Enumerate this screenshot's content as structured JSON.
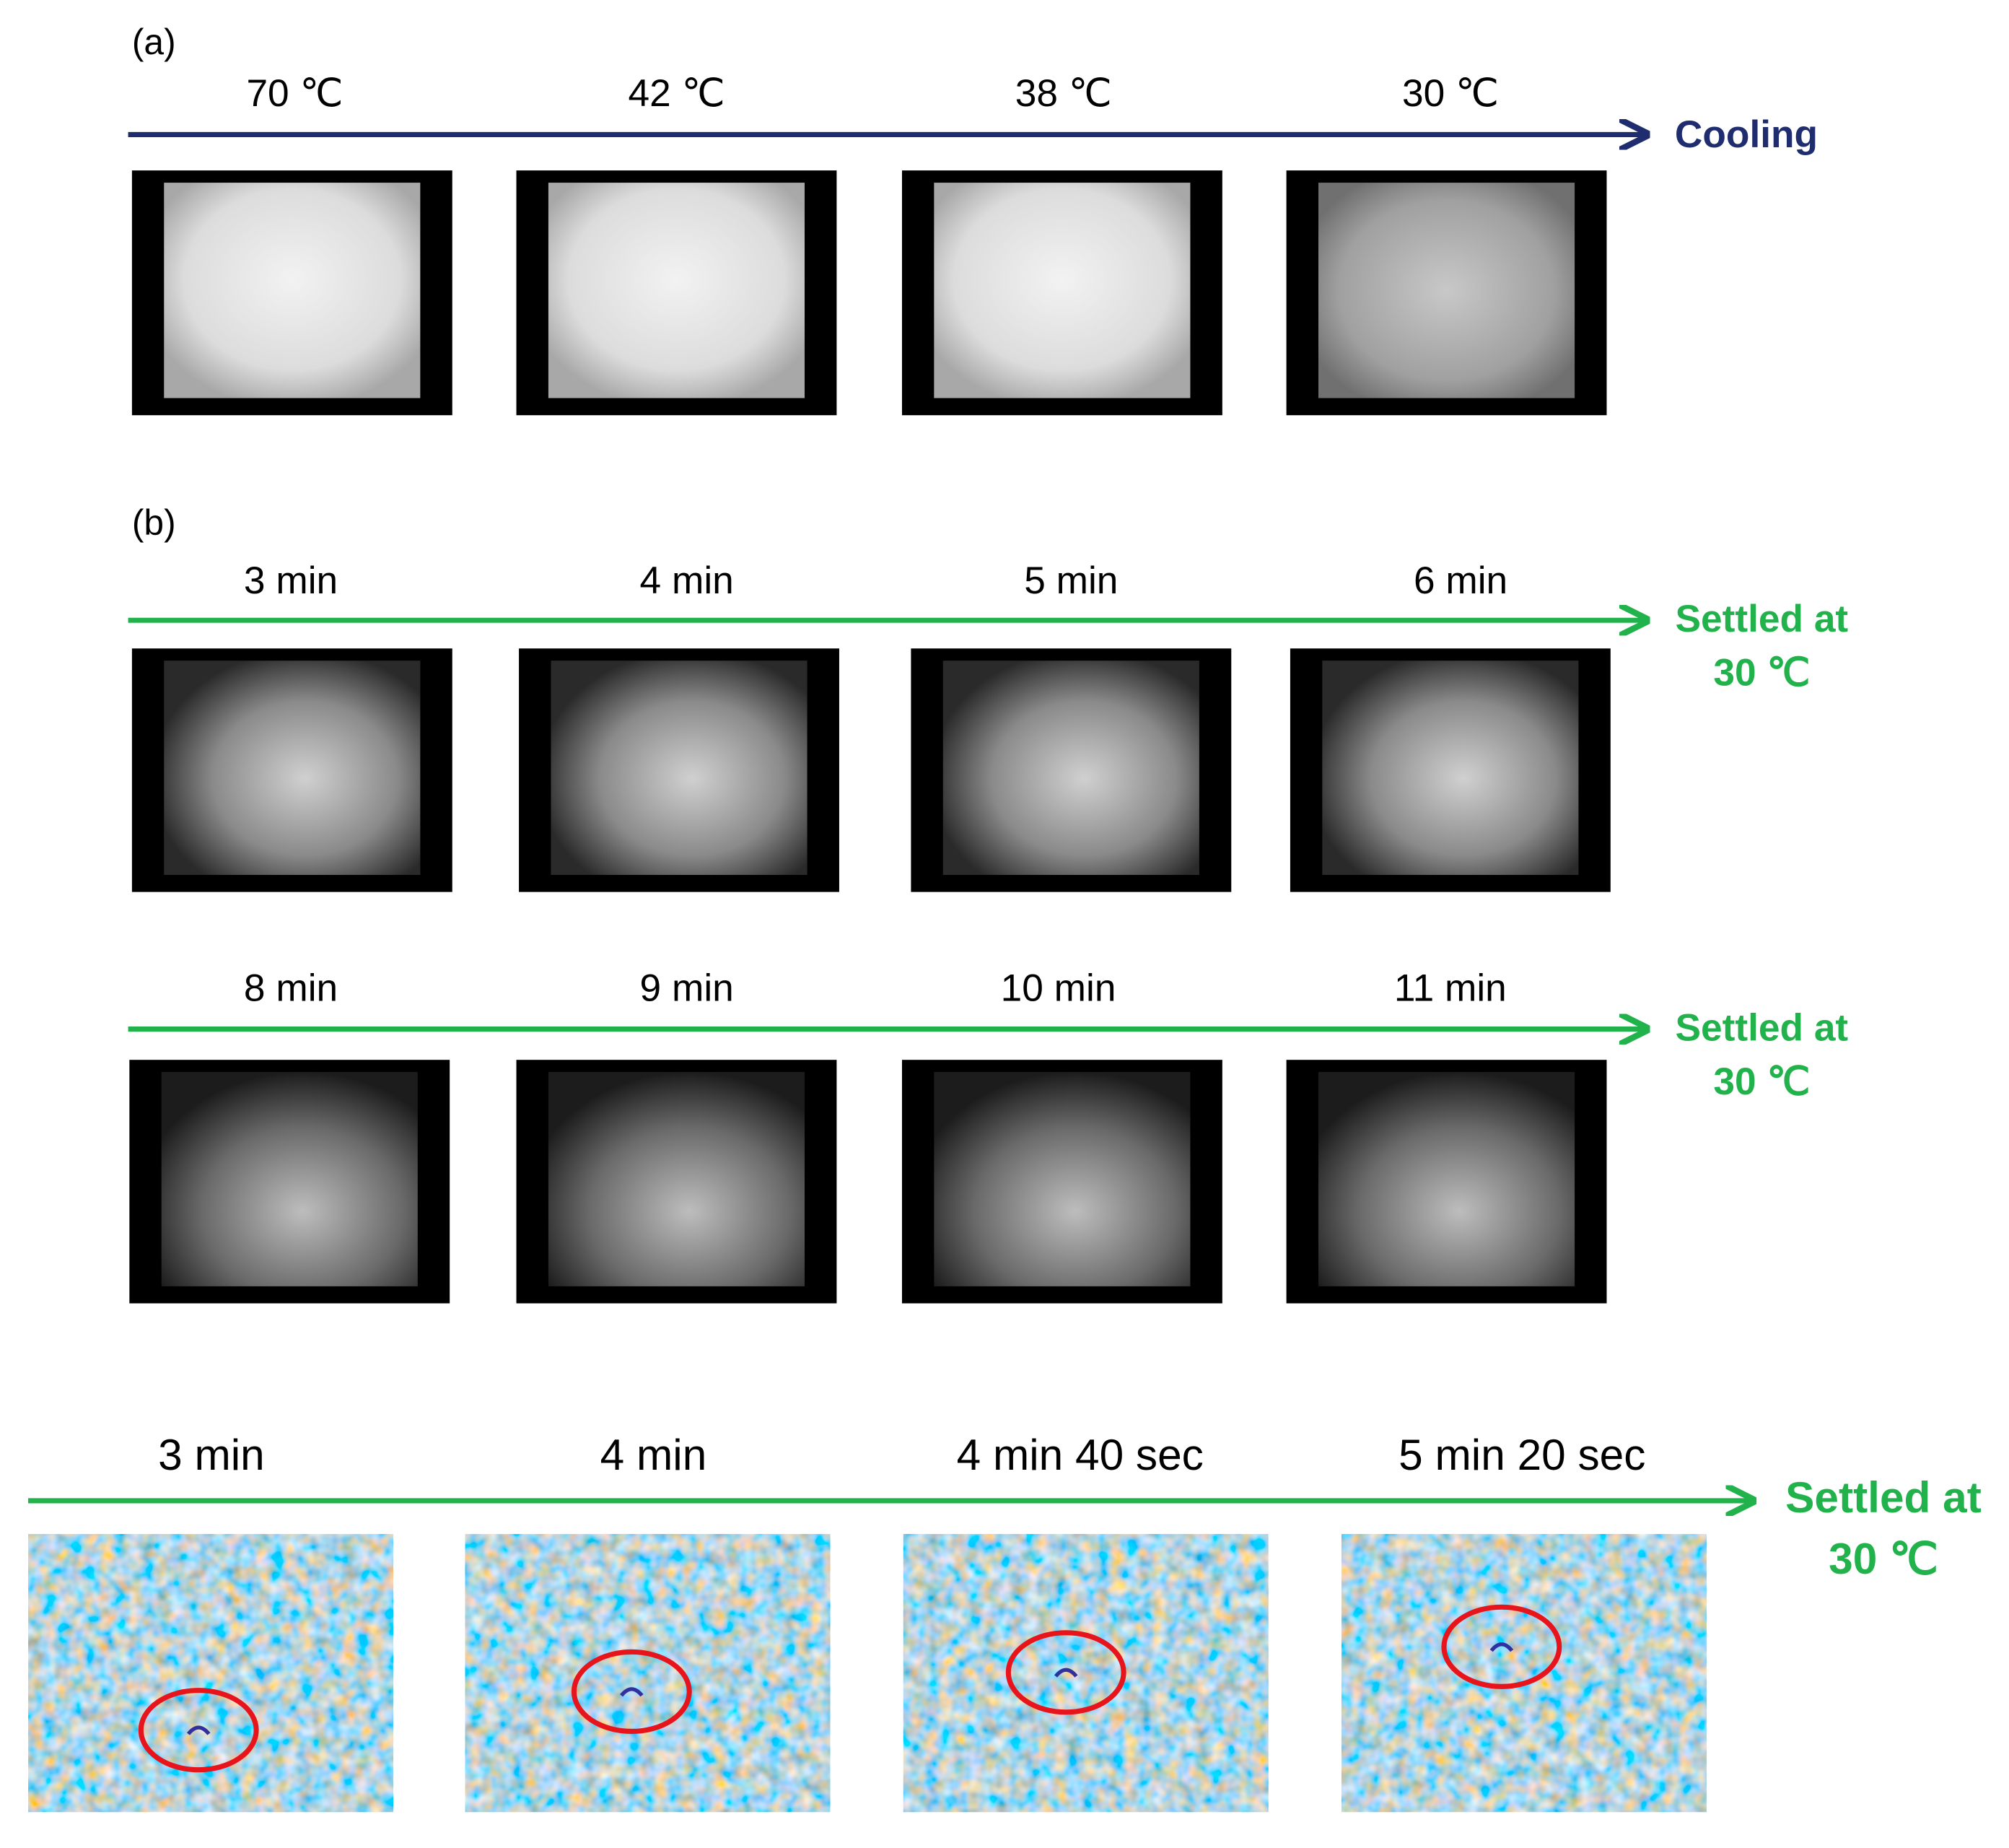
{
  "panel_a": {
    "label": "(a)",
    "arrow_label": [
      "Cooling"
    ],
    "frames": [
      "70 ℃",
      "42 ℃",
      "38 ℃",
      "30 ℃"
    ]
  },
  "panel_b": {
    "label": "(b)",
    "rows": [
      {
        "arrow_label": [
          "Settled at",
          "30 ℃"
        ],
        "frames": [
          "3 min",
          "4 min",
          "5 min",
          "6 min"
        ]
      },
      {
        "arrow_label": [
          "Settled at",
          "30 ℃"
        ],
        "frames": [
          "8 min",
          "9 min",
          "10 min",
          "11 min"
        ]
      }
    ]
  },
  "panel_c": {
    "arrow_label": [
      "Settled at",
      "30 ℃"
    ],
    "frames": [
      "3 min",
      "4 min",
      "4 min 40 sec",
      "5 min 20 sec"
    ]
  }
}
